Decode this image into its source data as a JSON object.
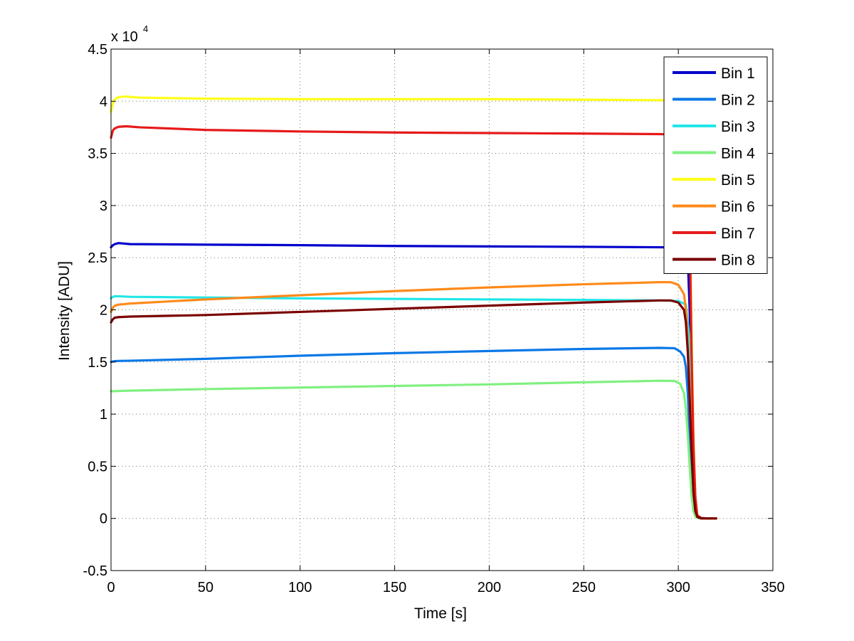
{
  "chart_data": {
    "type": "line",
    "title": "",
    "xlabel": "Time [s]",
    "ylabel": "Intensity [ADU]",
    "y_multiplier_label": "x 10",
    "y_multiplier_exponent": "4",
    "xlim": [
      0,
      350
    ],
    "ylim": [
      -0.5,
      4.5
    ],
    "y_scale_factor": 10000,
    "x_ticks": [
      0,
      50,
      100,
      150,
      200,
      250,
      300,
      350
    ],
    "x_tick_labels": [
      "0",
      "50",
      "100",
      "150",
      "200",
      "250",
      "300",
      "350"
    ],
    "y_ticks": [
      -0.5,
      0,
      0.5,
      1,
      1.5,
      2,
      2.5,
      3,
      3.5,
      4,
      4.5
    ],
    "y_tick_labels": [
      "-0.5",
      "0",
      "0.5",
      "1",
      "1.5",
      "2",
      "2.5",
      "3",
      "3.5",
      "4",
      "4.5"
    ],
    "grid": true,
    "legend_position": "top-right",
    "series": [
      {
        "name": "Bin 1",
        "color": "#0000cc",
        "x": [
          0,
          1,
          2,
          4,
          10,
          50,
          100,
          150,
          200,
          250,
          290,
          300,
          303,
          305,
          306,
          307,
          308,
          309,
          310,
          312,
          315,
          320
        ],
        "y": [
          2.6,
          2.62,
          2.63,
          2.64,
          2.63,
          2.625,
          2.62,
          2.612,
          2.608,
          2.604,
          2.6,
          2.598,
          2.592,
          2.5,
          2.0,
          1.3,
          0.6,
          0.2,
          0.03,
          0.005,
          0.0,
          0.0
        ]
      },
      {
        "name": "Bin 2",
        "color": "#0a78e6",
        "x": [
          0,
          1,
          2,
          4,
          10,
          50,
          100,
          150,
          200,
          250,
          290,
          298,
          301,
          303,
          304,
          305,
          306,
          307,
          308,
          309,
          310,
          312,
          315,
          320
        ],
        "y": [
          1.5,
          1.505,
          1.508,
          1.51,
          1.512,
          1.53,
          1.56,
          1.585,
          1.605,
          1.625,
          1.635,
          1.632,
          1.6,
          1.55,
          1.45,
          1.2,
          0.8,
          0.4,
          0.12,
          0.03,
          0.005,
          0.0,
          0.0,
          0.0
        ]
      },
      {
        "name": "Bin 3",
        "color": "#22e6e6",
        "x": [
          0,
          1,
          2,
          4,
          10,
          50,
          100,
          150,
          200,
          250,
          290,
          300,
          304,
          306,
          307,
          308,
          309,
          310,
          312,
          315,
          320
        ],
        "y": [
          2.11,
          2.125,
          2.13,
          2.13,
          2.125,
          2.118,
          2.11,
          2.105,
          2.1,
          2.095,
          2.09,
          2.085,
          2.05,
          1.7,
          1.0,
          0.4,
          0.1,
          0.02,
          0.003,
          0.0,
          0.0
        ]
      },
      {
        "name": "Bin 4",
        "color": "#80f080",
        "x": [
          0,
          1,
          2,
          4,
          10,
          50,
          100,
          150,
          200,
          250,
          290,
          298,
          301,
          303,
          304,
          305,
          306,
          307,
          308,
          309,
          310,
          312,
          315,
          320
        ],
        "y": [
          1.22,
          1.22,
          1.22,
          1.222,
          1.225,
          1.24,
          1.255,
          1.27,
          1.285,
          1.305,
          1.32,
          1.318,
          1.29,
          1.2,
          1.05,
          0.8,
          0.5,
          0.22,
          0.07,
          0.02,
          0.005,
          0.0,
          0.0,
          0.0
        ]
      },
      {
        "name": "Bin 5",
        "color": "#ffff1a",
        "x": [
          0,
          1,
          2,
          4,
          8,
          15,
          50,
          100,
          150,
          200,
          250,
          290,
          300,
          305,
          306,
          307,
          308,
          309,
          310,
          312,
          315,
          320
        ],
        "y": [
          3.9,
          3.98,
          4.02,
          4.04,
          4.045,
          4.035,
          4.025,
          4.02,
          4.02,
          4.02,
          4.015,
          4.01,
          4.0,
          3.8,
          3.0,
          1.8,
          0.8,
          0.2,
          0.03,
          0.003,
          0.0,
          0.0
        ]
      },
      {
        "name": "Bin 6",
        "color": "#ff8a1a",
        "x": [
          0,
          1,
          2,
          4,
          10,
          50,
          100,
          150,
          200,
          250,
          290,
          296,
          300,
          303,
          304,
          305,
          306,
          307,
          308,
          309,
          310,
          312,
          315,
          320
        ],
        "y": [
          1.98,
          2.02,
          2.04,
          2.05,
          2.06,
          2.1,
          2.14,
          2.18,
          2.215,
          2.245,
          2.265,
          2.265,
          2.24,
          2.15,
          2.0,
          1.7,
          1.25,
          0.7,
          0.25,
          0.07,
          0.015,
          0.0,
          0.0,
          0.0
        ]
      },
      {
        "name": "Bin 7",
        "color": "#e61a1a",
        "x": [
          0,
          1,
          2,
          4,
          8,
          15,
          50,
          100,
          150,
          200,
          250,
          290,
          300,
          305,
          306,
          307,
          308,
          309,
          310,
          312,
          315,
          320
        ],
        "y": [
          3.65,
          3.72,
          3.74,
          3.755,
          3.76,
          3.75,
          3.725,
          3.71,
          3.7,
          3.695,
          3.69,
          3.685,
          3.68,
          3.5,
          2.8,
          1.6,
          0.7,
          0.2,
          0.03,
          0.003,
          0.0,
          0.0
        ]
      },
      {
        "name": "Bin 8",
        "color": "#7a0000",
        "x": [
          0,
          1,
          2,
          4,
          10,
          50,
          100,
          150,
          200,
          250,
          290,
          296,
          300,
          303,
          304,
          305,
          306,
          307,
          308,
          309,
          310,
          312,
          315,
          320
        ],
        "y": [
          1.88,
          1.91,
          1.925,
          1.93,
          1.935,
          1.95,
          1.98,
          2.01,
          2.04,
          2.07,
          2.09,
          2.09,
          2.07,
          2.0,
          1.88,
          1.6,
          1.15,
          0.65,
          0.25,
          0.07,
          0.015,
          0.0,
          0.0,
          0.0
        ]
      }
    ]
  }
}
